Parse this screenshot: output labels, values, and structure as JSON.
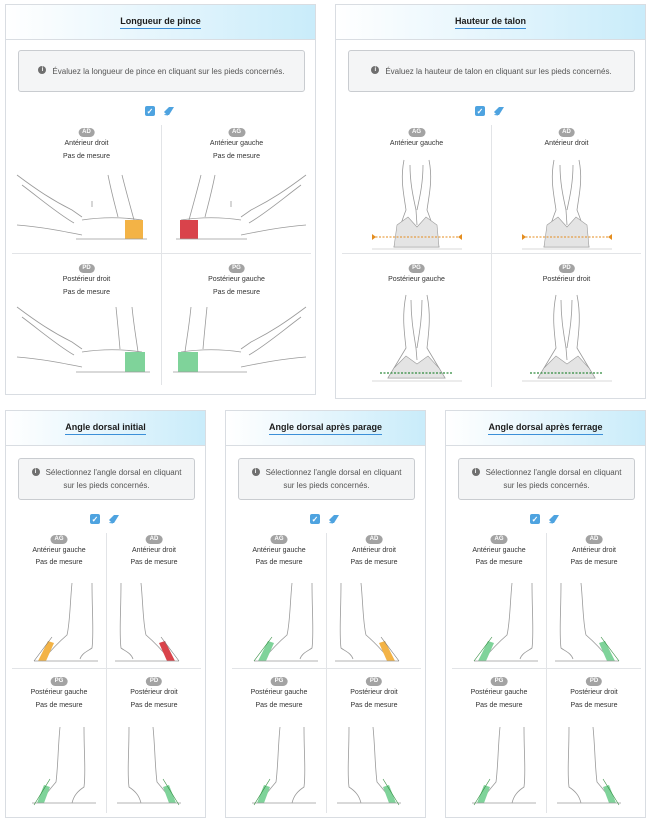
{
  "colors": {
    "orange": "#f3b346",
    "red": "#d9434b",
    "green": "#7fd39a",
    "blue_accent": "#3b8fd8",
    "dashed_orange": "#e48d1f",
    "dashed_green": "#2f8a3c"
  },
  "icons": {
    "info": "info-icon",
    "checkbox": "checkbox-checked-icon",
    "eraser": "eraser-icon"
  },
  "panels": {
    "longueur": {
      "title": "Longueur de pince",
      "info": "Évaluez la longueur de pince en cliquant sur les pieds concernés.",
      "quadrants": [
        {
          "badge": "AD",
          "label": "Antérieur droit",
          "status": "Pas de mesure",
          "fill": "orange"
        },
        {
          "badge": "AG",
          "label": "Antérieur gauche",
          "status": "Pas de mesure",
          "fill": "red"
        },
        {
          "badge": "PD",
          "label": "Postérieur droit",
          "status": "Pas de mesure",
          "fill": "green"
        },
        {
          "badge": "PG",
          "label": "Postérieur gauche",
          "status": "Pas de mesure",
          "fill": "green"
        }
      ]
    },
    "hauteur": {
      "title": "Hauteur de talon",
      "info": "Évaluez la hauteur de talon en cliquant sur les pieds concernés.",
      "quadrants": [
        {
          "badge": "AG",
          "label": "Antérieur gauche"
        },
        {
          "badge": "AD",
          "label": "Antérieur droit"
        },
        {
          "badge": "PG",
          "label": "Postérieur gauche"
        },
        {
          "badge": "PD",
          "label": "Postérieur droit"
        }
      ]
    },
    "angle_initial": {
      "title": "Angle dorsal initial",
      "info": "Sélectionnez l'angle dorsal en cliquant sur les pieds concernés.",
      "quadrants": [
        {
          "badge": "AG",
          "label": "Antérieur gauche",
          "status": "Pas de mesure",
          "fill": "orange"
        },
        {
          "badge": "AD",
          "label": "Antérieur droit",
          "status": "Pas de mesure",
          "fill": "red"
        },
        {
          "badge": "PG",
          "label": "Postérieur gauche",
          "status": "Pas de mesure",
          "fill": "green"
        },
        {
          "badge": "PD",
          "label": "Postérieur droit",
          "status": "Pas de mesure",
          "fill": "green"
        }
      ]
    },
    "angle_parage": {
      "title": "Angle dorsal après parage",
      "info": "Sélectionnez l'angle dorsal en cliquant sur les pieds concernés.",
      "quadrants": [
        {
          "badge": "AG",
          "label": "Antérieur gauche",
          "status": "Pas de mesure",
          "fill": "green"
        },
        {
          "badge": "AD",
          "label": "Antérieur droit",
          "status": "Pas de mesure",
          "fill": "orange"
        },
        {
          "badge": "PG",
          "label": "Postérieur gauche",
          "status": "Pas de mesure",
          "fill": "green"
        },
        {
          "badge": "PD",
          "label": "Postérieur droit",
          "status": "Pas de mesure",
          "fill": "green"
        }
      ]
    },
    "angle_ferrage": {
      "title": "Angle dorsal après ferrage",
      "info": "Sélectionnez l'angle dorsal en cliquant sur les pieds concernés.",
      "quadrants": [
        {
          "badge": "AG",
          "label": "Antérieur gauche",
          "status": "Pas de mesure",
          "fill": "green"
        },
        {
          "badge": "AD",
          "label": "Antérieur droit",
          "status": "Pas de mesure",
          "fill": "green"
        },
        {
          "badge": "PG",
          "label": "Postérieur gauche",
          "status": "Pas de mesure",
          "fill": "green"
        },
        {
          "badge": "PD",
          "label": "Postérieur droit",
          "status": "Pas de mesure",
          "fill": "green"
        }
      ]
    }
  }
}
